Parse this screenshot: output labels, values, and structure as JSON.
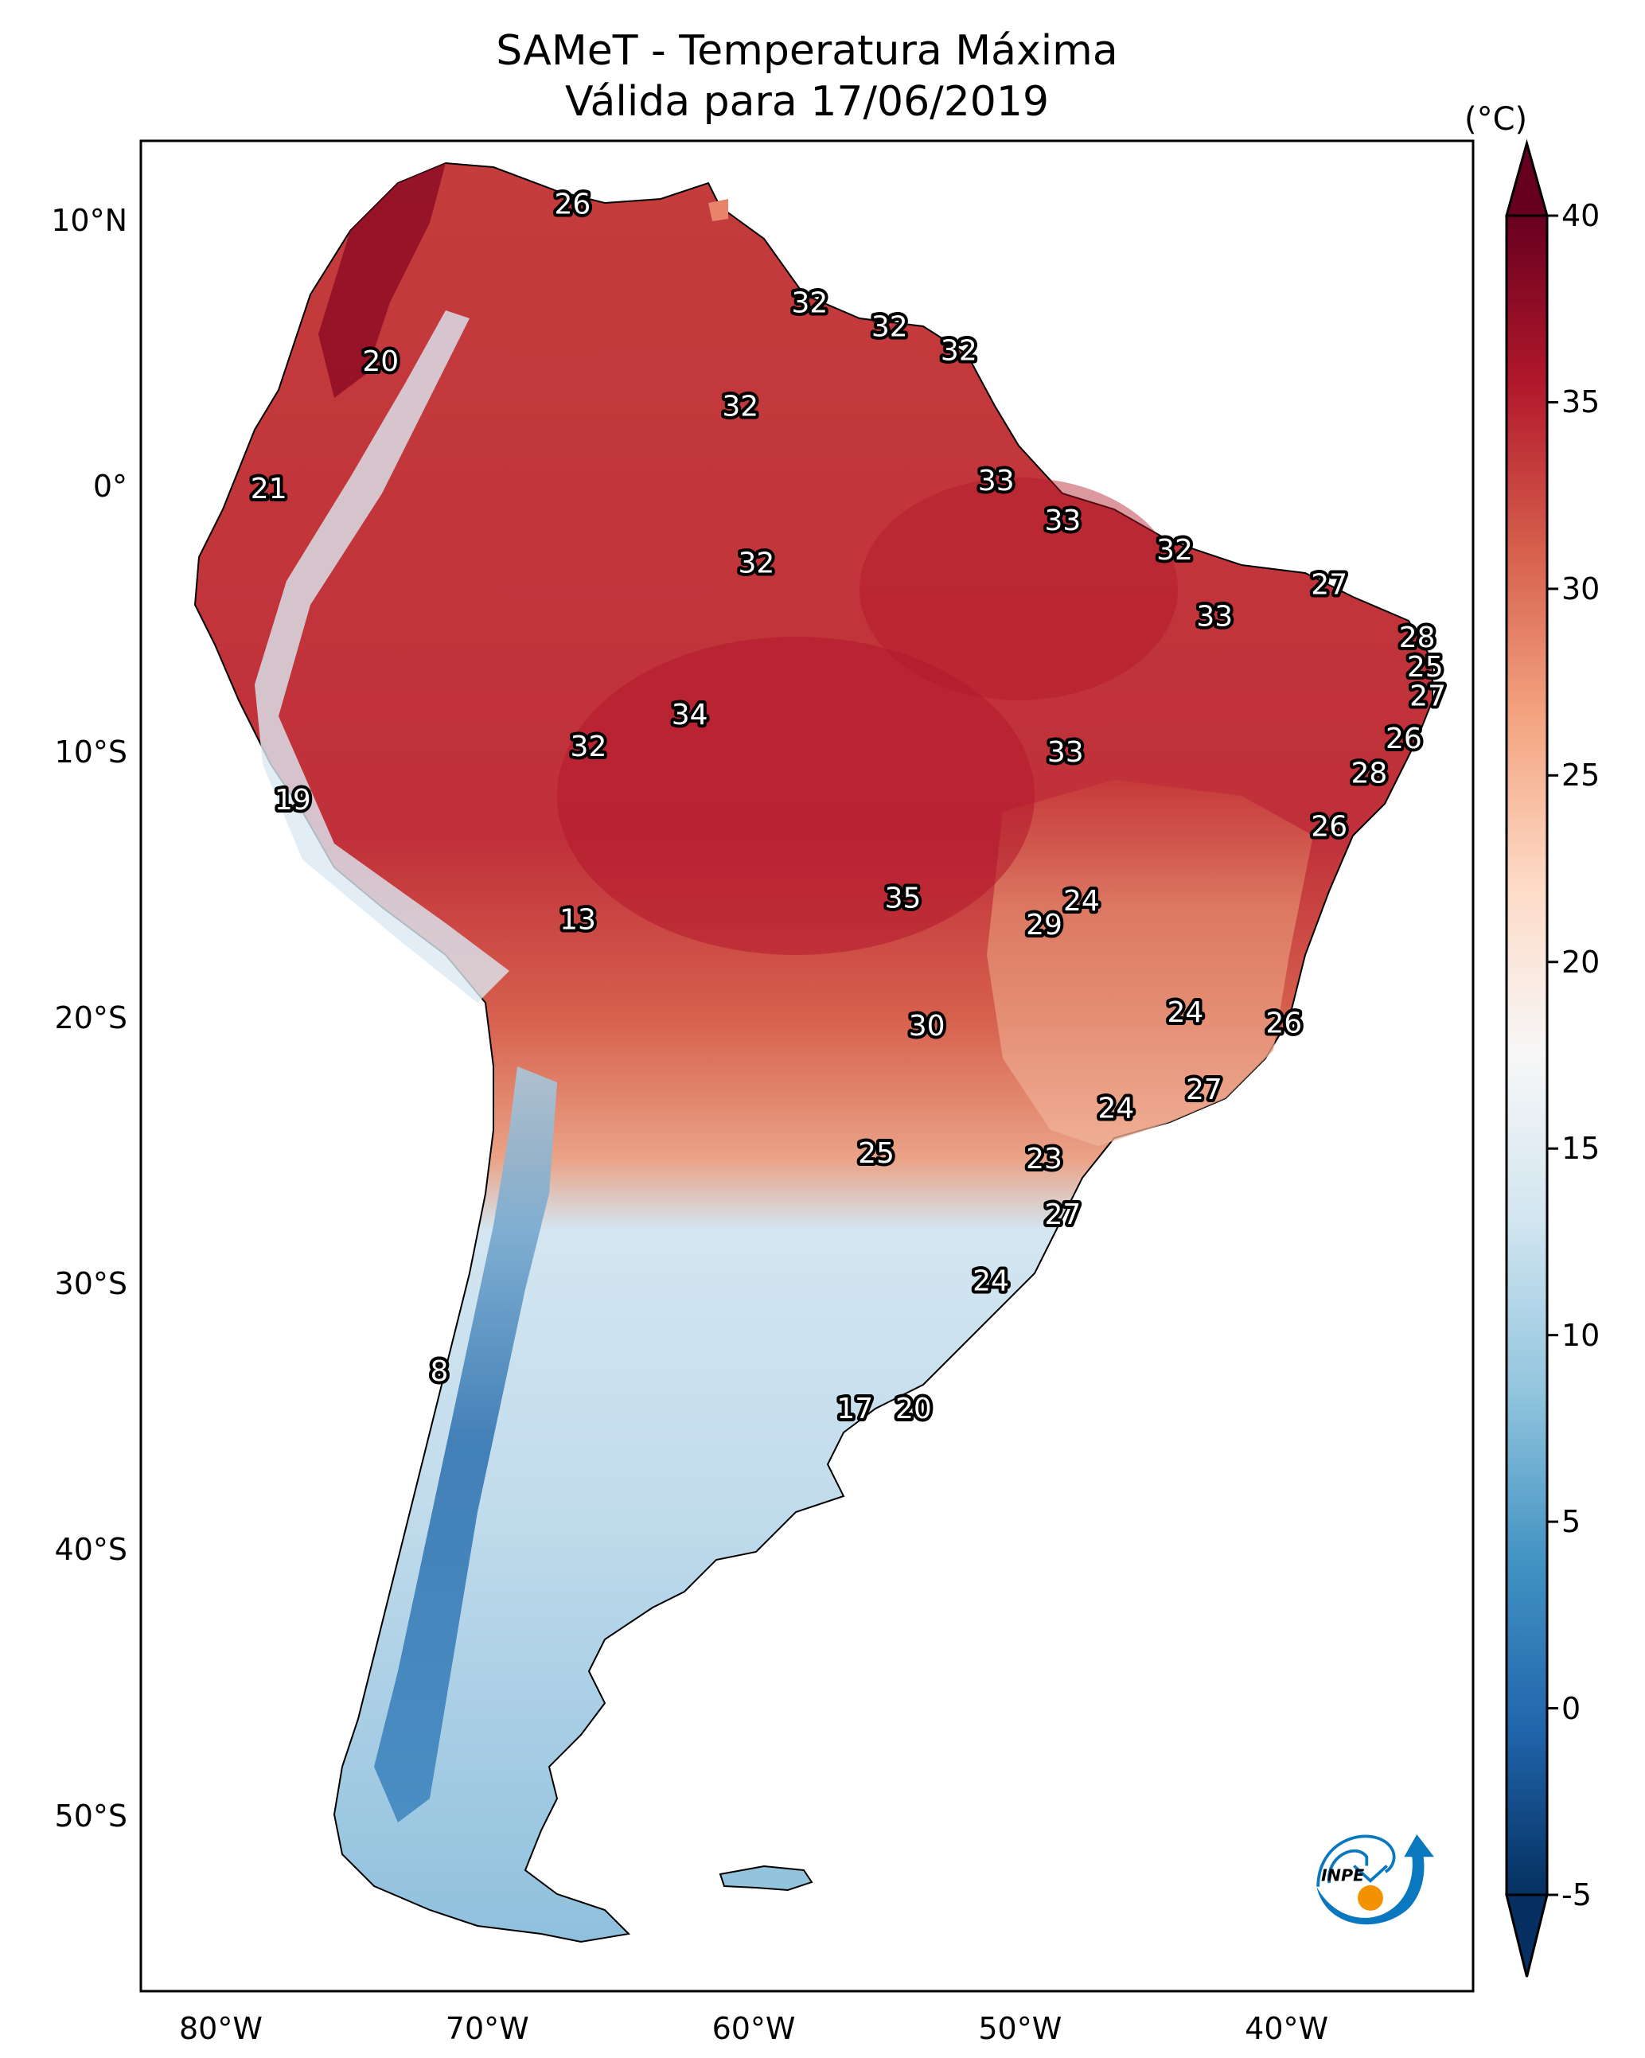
{
  "title": {
    "line1": "SAMeT - Temperatura Máxima",
    "line2": "Válida para 17/06/2019"
  },
  "logo": {
    "text": "INPE",
    "icon": "inpe-logo-icon",
    "colors": {
      "blue": "#0a78be",
      "orange": "#f39200"
    }
  },
  "chart_data": {
    "type": "heatmap",
    "title": "SAMeT - Temperatura Máxima",
    "subtitle": "Válida para 17/06/2019",
    "variable": "Temperatura Máxima",
    "units": "°C",
    "colormap": "RdBu_r",
    "projection": "PlateCarree",
    "extent": {
      "lon": [
        -83,
        -33
      ],
      "lat": [
        -56.6,
        13
      ]
    },
    "grid": false,
    "x_ticks": [
      {
        "value": -80,
        "label": "80°W"
      },
      {
        "value": -70,
        "label": "70°W"
      },
      {
        "value": -60,
        "label": "60°W"
      },
      {
        "value": -50,
        "label": "50°W"
      },
      {
        "value": -40,
        "label": "40°W"
      }
    ],
    "y_ticks": [
      {
        "value": 10,
        "label": "10°N"
      },
      {
        "value": 0,
        "label": "0°"
      },
      {
        "value": -10,
        "label": "10°S"
      },
      {
        "value": -20,
        "label": "20°S"
      },
      {
        "value": -30,
        "label": "30°S"
      },
      {
        "value": -40,
        "label": "40°S"
      },
      {
        "value": -50,
        "label": "50°S"
      }
    ],
    "colorbar": {
      "label": "(°C)",
      "range": [
        -5,
        40
      ],
      "extend": "both",
      "placement": "right",
      "ticks": [
        {
          "value": 40,
          "label": "40"
        },
        {
          "value": 35,
          "label": "35"
        },
        {
          "value": 30,
          "label": "30"
        },
        {
          "value": 25,
          "label": "25"
        },
        {
          "value": 20,
          "label": "20"
        },
        {
          "value": 15,
          "label": "15"
        },
        {
          "value": 10,
          "label": "10"
        },
        {
          "value": 5,
          "label": "5"
        },
        {
          "value": 0,
          "label": "0"
        },
        {
          "value": -5,
          "label": "-5"
        }
      ],
      "colors": [
        "#053061",
        "#2166ac",
        "#4393c3",
        "#92c5de",
        "#d1e5f0",
        "#f7f7f7",
        "#fddbc7",
        "#f4a582",
        "#d6604d",
        "#b2182b",
        "#67001f"
      ]
    },
    "station_values": [
      {
        "lon": -66.8,
        "lat": 10.6,
        "value": 26
      },
      {
        "lon": -57.9,
        "lat": 6.9,
        "value": 32
      },
      {
        "lon": -54.9,
        "lat": 6.0,
        "value": 32
      },
      {
        "lon": -52.3,
        "lat": 5.1,
        "value": 32
      },
      {
        "lon": -74.0,
        "lat": 4.7,
        "value": 20
      },
      {
        "lon": -60.5,
        "lat": 3.0,
        "value": 32
      },
      {
        "lon": -50.9,
        "lat": 0.2,
        "value": 33
      },
      {
        "lon": -78.2,
        "lat": -0.1,
        "value": 21
      },
      {
        "lon": -48.4,
        "lat": -1.3,
        "value": 33
      },
      {
        "lon": -44.2,
        "lat": -2.4,
        "value": 32
      },
      {
        "lon": -59.9,
        "lat": -2.9,
        "value": 32
      },
      {
        "lon": -38.4,
        "lat": -3.7,
        "value": 27
      },
      {
        "lon": -42.7,
        "lat": -4.9,
        "value": 33
      },
      {
        "lon": -35.1,
        "lat": -5.7,
        "value": 28
      },
      {
        "lon": -34.8,
        "lat": -6.8,
        "value": 25
      },
      {
        "lon": -34.7,
        "lat": -7.9,
        "value": 27
      },
      {
        "lon": -62.4,
        "lat": -8.6,
        "value": 34
      },
      {
        "lon": -35.6,
        "lat": -9.5,
        "value": 26
      },
      {
        "lon": -66.2,
        "lat": -9.8,
        "value": 32
      },
      {
        "lon": -48.3,
        "lat": -10.0,
        "value": 33
      },
      {
        "lon": -36.9,
        "lat": -10.8,
        "value": 28
      },
      {
        "lon": -77.3,
        "lat": -11.8,
        "value": 19
      },
      {
        "lon": -38.4,
        "lat": -12.8,
        "value": 26
      },
      {
        "lon": -54.4,
        "lat": -15.5,
        "value": 35
      },
      {
        "lon": -47.7,
        "lat": -15.6,
        "value": 24
      },
      {
        "lon": -49.1,
        "lat": -16.5,
        "value": 29
      },
      {
        "lon": -66.6,
        "lat": -16.3,
        "value": 13
      },
      {
        "lon": -43.8,
        "lat": -19.8,
        "value": 24
      },
      {
        "lon": -40.1,
        "lat": -20.2,
        "value": 26
      },
      {
        "lon": -53.5,
        "lat": -20.3,
        "value": 30
      },
      {
        "lon": -43.1,
        "lat": -22.7,
        "value": 27
      },
      {
        "lon": -46.4,
        "lat": -23.4,
        "value": 24
      },
      {
        "lon": -55.4,
        "lat": -25.1,
        "value": 25
      },
      {
        "lon": -49.1,
        "lat": -25.3,
        "value": 23
      },
      {
        "lon": -48.4,
        "lat": -27.4,
        "value": 27
      },
      {
        "lon": -51.1,
        "lat": -29.9,
        "value": 24
      },
      {
        "lon": -71.8,
        "lat": -33.3,
        "value": 8
      },
      {
        "lon": -56.2,
        "lat": -34.7,
        "value": 17
      },
      {
        "lon": -54.0,
        "lat": -34.7,
        "value": 20
      }
    ]
  }
}
